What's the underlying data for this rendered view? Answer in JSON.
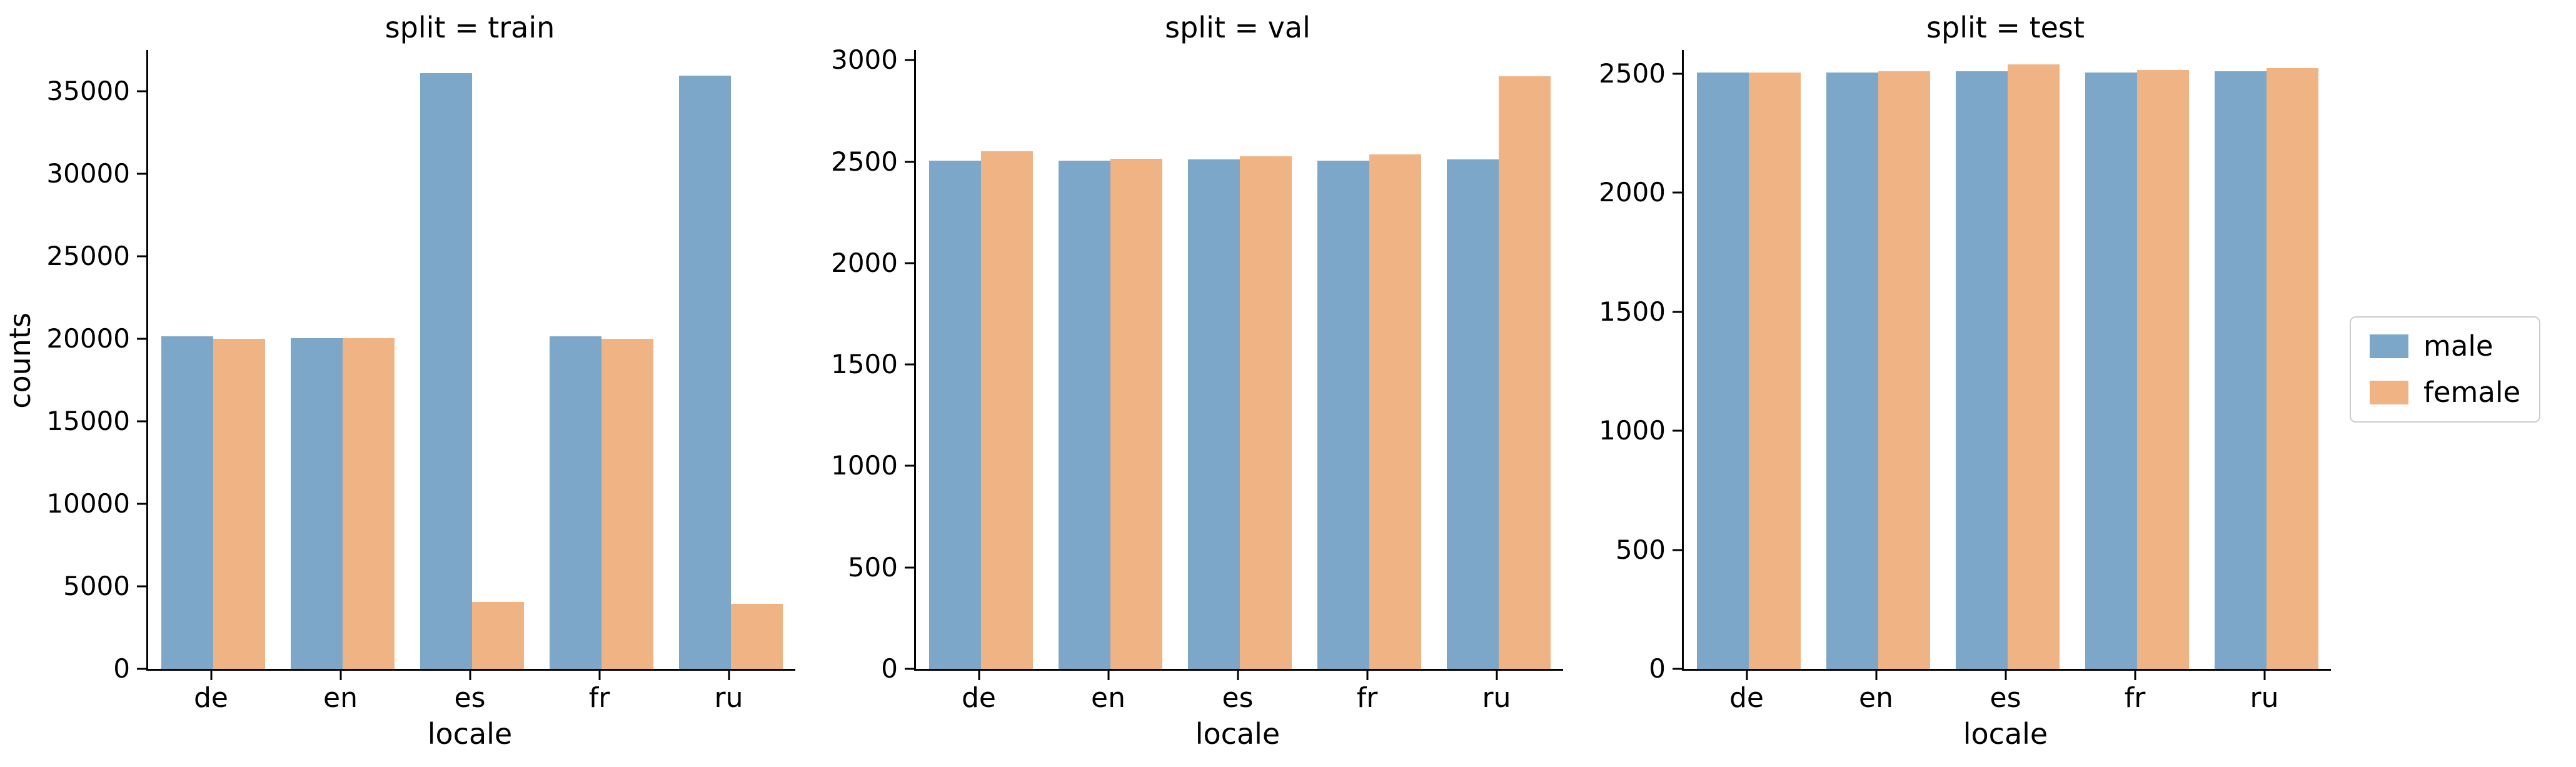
{
  "figure": {
    "legend": {
      "entries": [
        {
          "label": "male",
          "color": "#7CA7C9"
        },
        {
          "label": "female",
          "color": "#F0B484"
        }
      ]
    }
  },
  "chart_data": [
    {
      "type": "bar",
      "title": "split = train",
      "xlabel": "locale",
      "ylabel": "counts",
      "categories": [
        "de",
        "en",
        "es",
        "fr",
        "ru"
      ],
      "series": [
        {
          "name": "male",
          "color": "#7CA7C9",
          "values": [
            20150,
            20050,
            36100,
            20150,
            35950
          ]
        },
        {
          "name": "female",
          "color": "#F0B484",
          "values": [
            20000,
            20050,
            4050,
            20000,
            3950
          ]
        }
      ],
      "ylim": [
        0,
        37500
      ],
      "yticks": [
        0,
        5000,
        10000,
        15000,
        20000,
        25000,
        30000,
        35000
      ],
      "grid": false,
      "legend_position": "right-outside"
    },
    {
      "type": "bar",
      "title": "split = val",
      "xlabel": "locale",
      "ylabel": "",
      "categories": [
        "de",
        "en",
        "es",
        "fr",
        "ru"
      ],
      "series": [
        {
          "name": "male",
          "color": "#7CA7C9",
          "values": [
            2505,
            2505,
            2510,
            2505,
            2510
          ]
        },
        {
          "name": "female",
          "color": "#F0B484",
          "values": [
            2550,
            2515,
            2525,
            2535,
            2920
          ]
        }
      ],
      "ylim": [
        0,
        3050
      ],
      "yticks": [
        0,
        500,
        1000,
        1500,
        2000,
        2500,
        3000
      ],
      "grid": false,
      "legend_position": "right-outside"
    },
    {
      "type": "bar",
      "title": "split = test",
      "xlabel": "locale",
      "ylabel": "",
      "categories": [
        "de",
        "en",
        "es",
        "fr",
        "ru"
      ],
      "series": [
        {
          "name": "male",
          "color": "#7CA7C9",
          "values": [
            2505,
            2505,
            2510,
            2505,
            2510
          ]
        },
        {
          "name": "female",
          "color": "#F0B484",
          "values": [
            2505,
            2510,
            2540,
            2515,
            2525
          ]
        }
      ],
      "ylim": [
        0,
        2600
      ],
      "yticks": [
        0,
        500,
        1000,
        1500,
        2000,
        2500
      ],
      "grid": false,
      "legend_position": "right-outside"
    }
  ]
}
